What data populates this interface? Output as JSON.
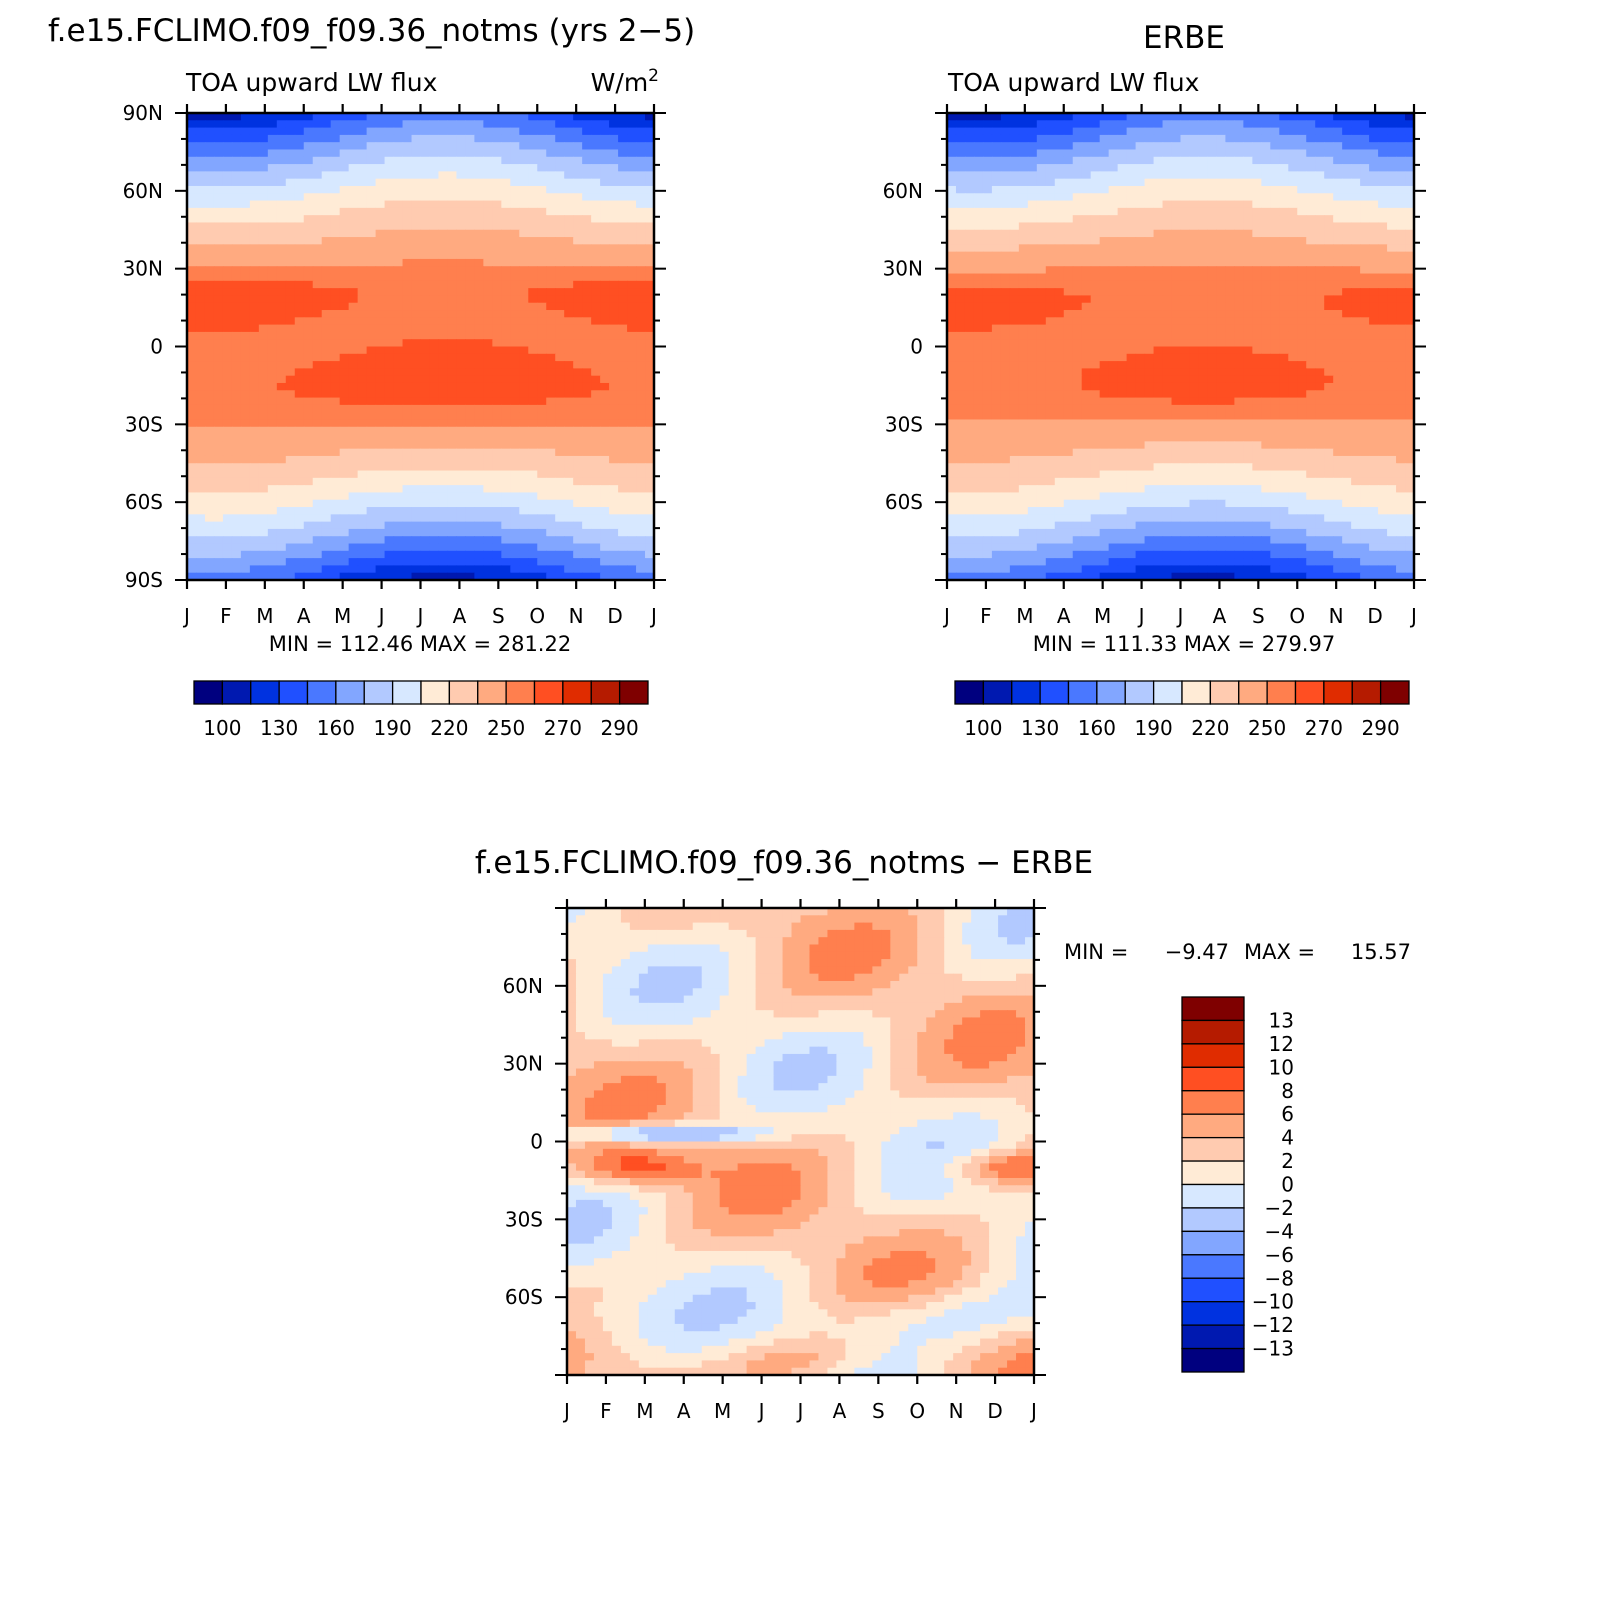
{
  "figure_title_left": "f.e15.FCLIMO.f09_f09.36_notms (yrs 2−5)",
  "figure_title_right": "ERBE",
  "figure_title_diff": "f.e15.FCLIMO.f09_f09.36_notms − ERBE",
  "months": [
    "J",
    "F",
    "M",
    "A",
    "M",
    "J",
    "J",
    "A",
    "S",
    "O",
    "N",
    "D",
    "J"
  ],
  "chart_data": [
    {
      "type": "heatmap",
      "title": "f.e15.FCLIMO.f09_f09.36_notms (yrs 2−5)",
      "left_label": "TOA upward LW flux",
      "right_label": "W/m",
      "right_label_sup": "2",
      "x": [
        "J",
        "F",
        "M",
        "A",
        "M",
        "J",
        "J",
        "A",
        "S",
        "O",
        "N",
        "D",
        "J"
      ],
      "ylabels": [
        "90N",
        "60N",
        "30N",
        "0",
        "30S",
        "60S",
        "90S"
      ],
      "ylim": [
        -90,
        90
      ],
      "stats": "MIN = 112.46 MAX = 281.22",
      "min": 112.46,
      "max": 281.22,
      "colorbar_labels": [
        "100",
        "130",
        "160",
        "190",
        "220",
        "250",
        "270",
        "290"
      ]
    },
    {
      "type": "heatmap",
      "title": "ERBE",
      "left_label": "TOA upward LW flux",
      "x": [
        "J",
        "F",
        "M",
        "A",
        "M",
        "J",
        "J",
        "A",
        "S",
        "O",
        "N",
        "D",
        "J"
      ],
      "ylabels": [
        "60N",
        "30N",
        "0",
        "30S",
        "60S"
      ],
      "ylim": [
        -90,
        90
      ],
      "stats": "MIN = 111.33 MAX = 279.97",
      "min": 111.33,
      "max": 279.97,
      "colorbar_labels": [
        "100",
        "130",
        "160",
        "190",
        "220",
        "250",
        "270",
        "290"
      ]
    },
    {
      "type": "heatmap",
      "title": "f.e15.FCLIMO.f09_f09.36_notms − ERBE",
      "x": [
        "J",
        "F",
        "M",
        "A",
        "M",
        "J",
        "J",
        "A",
        "S",
        "O",
        "N",
        "D",
        "J"
      ],
      "ylabels": [
        "60N",
        "30N",
        "0",
        "30S",
        "60S"
      ],
      "ylim": [
        -90,
        90
      ],
      "stats_min_label": "MIN =",
      "stats_min": "−9.47",
      "stats_max_label": "MAX =",
      "stats_max": "15.57",
      "min": -9.47,
      "max": 15.57,
      "colorbar_labels": [
        "13",
        "12",
        "10",
        "8",
        "6",
        "4",
        "2",
        "0",
        "−2",
        "−4",
        "−6",
        "−8",
        "−10",
        "−12",
        "−13"
      ]
    }
  ],
  "colors": {
    "abs_levels": [
      "#00007f",
      "#0019b0",
      "#0032e0",
      "#2050ff",
      "#4a78ff",
      "#82a6ff",
      "#b2c9ff",
      "#d7e8ff",
      "#ffebd6",
      "#ffcbb0",
      "#ffaa80",
      "#ff7f4e",
      "#ff4f22",
      "#e02c00",
      "#b51b00",
      "#7f0000"
    ],
    "diff_levels": [
      "#7f0000",
      "#b51b00",
      "#e02c00",
      "#ff4f22",
      "#ff7f4e",
      "#ffaa80",
      "#ffcbb0",
      "#ffebd6",
      "#d7e8ff",
      "#b2c9ff",
      "#82a6ff",
      "#4a78ff",
      "#2050ff",
      "#0032e0",
      "#0019b0",
      "#00007f"
    ]
  }
}
